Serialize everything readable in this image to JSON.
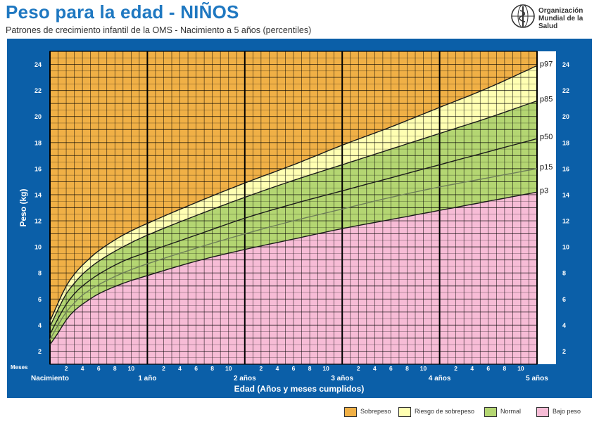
{
  "header": {
    "title": "Peso para la edad - NIÑOS",
    "subtitle": "Patrones de crecimiento infantil de la OMS - Nacimiento a 5 años (percentiles)",
    "org_line1": "Organización",
    "org_line2": "Mundial de la Salud"
  },
  "colors": {
    "frame": "#0b5fa8",
    "sobrepeso": "#f0b046",
    "riesgo": "#ffffb2",
    "normal": "#b4d672",
    "bajo": "#f7bcd6",
    "title": "#1f78c1"
  },
  "legend": [
    {
      "label": "Sobrepeso",
      "color": "#f0b046"
    },
    {
      "label": "Riesgo de sobrepeso",
      "color": "#ffffb2"
    },
    {
      "label": "Normal",
      "color": "#b4d672"
    },
    {
      "label": "Bajo peso",
      "color": "#f7bcd6"
    }
  ],
  "chart_data": {
    "type": "line",
    "title": "Peso para la edad - NIÑOS",
    "subtitle": "Patrones de crecimiento infantil de la OMS - Nacimiento a 5 años (percentiles)",
    "xlabel": "Edad (Años y meses cumplidos)",
    "ylabel": "Peso (kg)",
    "x_unit_label": "Meses",
    "xlim": [
      0,
      60
    ],
    "ylim": [
      1,
      25
    ],
    "y_ticks": [
      2,
      4,
      6,
      8,
      10,
      12,
      14,
      16,
      18,
      20,
      22,
      24
    ],
    "month_tick_labels": [
      "2",
      "4",
      "6",
      "8",
      "10"
    ],
    "year_labels": [
      {
        "month": 0,
        "label": "Nacimiento"
      },
      {
        "month": 12,
        "label": "1 año"
      },
      {
        "month": 24,
        "label": "2 años"
      },
      {
        "month": 36,
        "label": "3 años"
      },
      {
        "month": 48,
        "label": "4 años"
      },
      {
        "month": 60,
        "label": "5 años"
      }
    ],
    "grid": true,
    "legend_position": "bottom-right",
    "x": [
      0,
      1,
      2,
      3,
      4,
      6,
      9,
      12,
      18,
      24,
      30,
      36,
      42,
      48,
      54,
      60
    ],
    "series": [
      {
        "name": "p97",
        "values": [
          4.3,
          5.7,
          7.0,
          7.9,
          8.6,
          9.7,
          10.9,
          11.8,
          13.4,
          14.9,
          16.3,
          17.8,
          19.2,
          20.7,
          22.2,
          23.9
        ]
      },
      {
        "name": "p85",
        "values": [
          3.9,
          5.2,
          6.4,
          7.2,
          7.9,
          8.9,
          10.0,
          10.9,
          12.4,
          13.8,
          15.1,
          16.3,
          17.5,
          18.7,
          19.9,
          21.2
        ]
      },
      {
        "name": "p50",
        "values": [
          3.3,
          4.5,
          5.6,
          6.4,
          7.0,
          7.9,
          8.9,
          9.6,
          10.9,
          12.2,
          13.3,
          14.3,
          15.3,
          16.3,
          17.3,
          18.3
        ]
      },
      {
        "name": "p15",
        "values": [
          2.9,
          4.0,
          5.0,
          5.7,
          6.3,
          7.1,
          8.0,
          8.7,
          9.9,
          11.0,
          12.0,
          12.9,
          13.8,
          14.6,
          15.3,
          16.0
        ]
      },
      {
        "name": "p3",
        "values": [
          2.5,
          3.4,
          4.4,
          5.1,
          5.6,
          6.4,
          7.2,
          7.8,
          8.9,
          9.8,
          10.6,
          11.4,
          12.1,
          12.8,
          13.5,
          14.2
        ]
      }
    ],
    "zones": [
      {
        "name": "Sobrepeso",
        "from": "p97",
        "to": "top"
      },
      {
        "name": "Riesgo de sobrepeso",
        "from": "p85",
        "to": "p97"
      },
      {
        "name": "Normal",
        "from": "p3",
        "to": "p85"
      },
      {
        "name": "Bajo peso",
        "from": "bottom",
        "to": "p3"
      }
    ]
  }
}
